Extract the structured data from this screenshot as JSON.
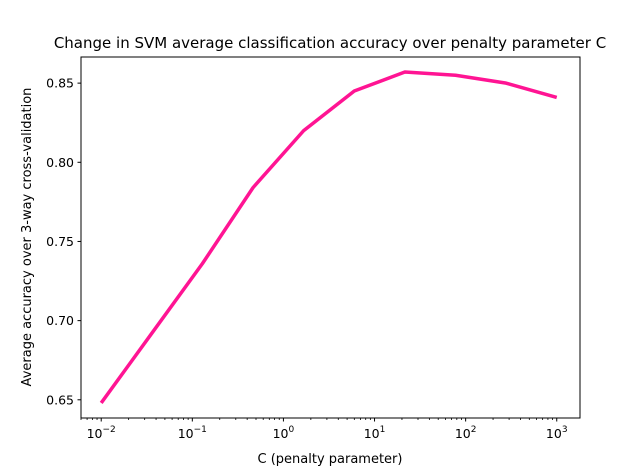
{
  "chart_data": {
    "type": "line",
    "title": "Change in SVM average classification accuracy over penalty parameter C",
    "xlabel": "C (penalty parameter)",
    "ylabel": "Average accuracy over 3-way cross-validation",
    "xscale": "log",
    "xlim": [
      0.006,
      1800
    ],
    "ylim": [
      0.6385,
      0.8665
    ],
    "grid": false,
    "line_color": "#ff1493",
    "x_ticks": [
      {
        "base": "10",
        "exp": "−2",
        "value": 0.01
      },
      {
        "base": "10",
        "exp": "−1",
        "value": 0.1
      },
      {
        "base": "10",
        "exp": "0",
        "value": 1
      },
      {
        "base": "10",
        "exp": "1",
        "value": 10
      },
      {
        "base": "10",
        "exp": "2",
        "value": 100
      },
      {
        "base": "10",
        "exp": "3",
        "value": 1000
      }
    ],
    "y_ticks": [
      {
        "label": "0.65",
        "value": 0.65
      },
      {
        "label": "0.70",
        "value": 0.7
      },
      {
        "label": "0.75",
        "value": 0.75
      },
      {
        "label": "0.80",
        "value": 0.8
      },
      {
        "label": "0.85",
        "value": 0.85
      }
    ],
    "series": [
      {
        "x": [
          0.01,
          0.0359,
          0.129,
          0.464,
          1.668,
          5.995,
          21.54,
          77.43,
          278.3,
          1000
        ],
        "y": [
          0.648,
          0.692,
          0.736,
          0.784,
          0.82,
          0.845,
          0.857,
          0.855,
          0.85,
          0.841
        ]
      }
    ]
  }
}
